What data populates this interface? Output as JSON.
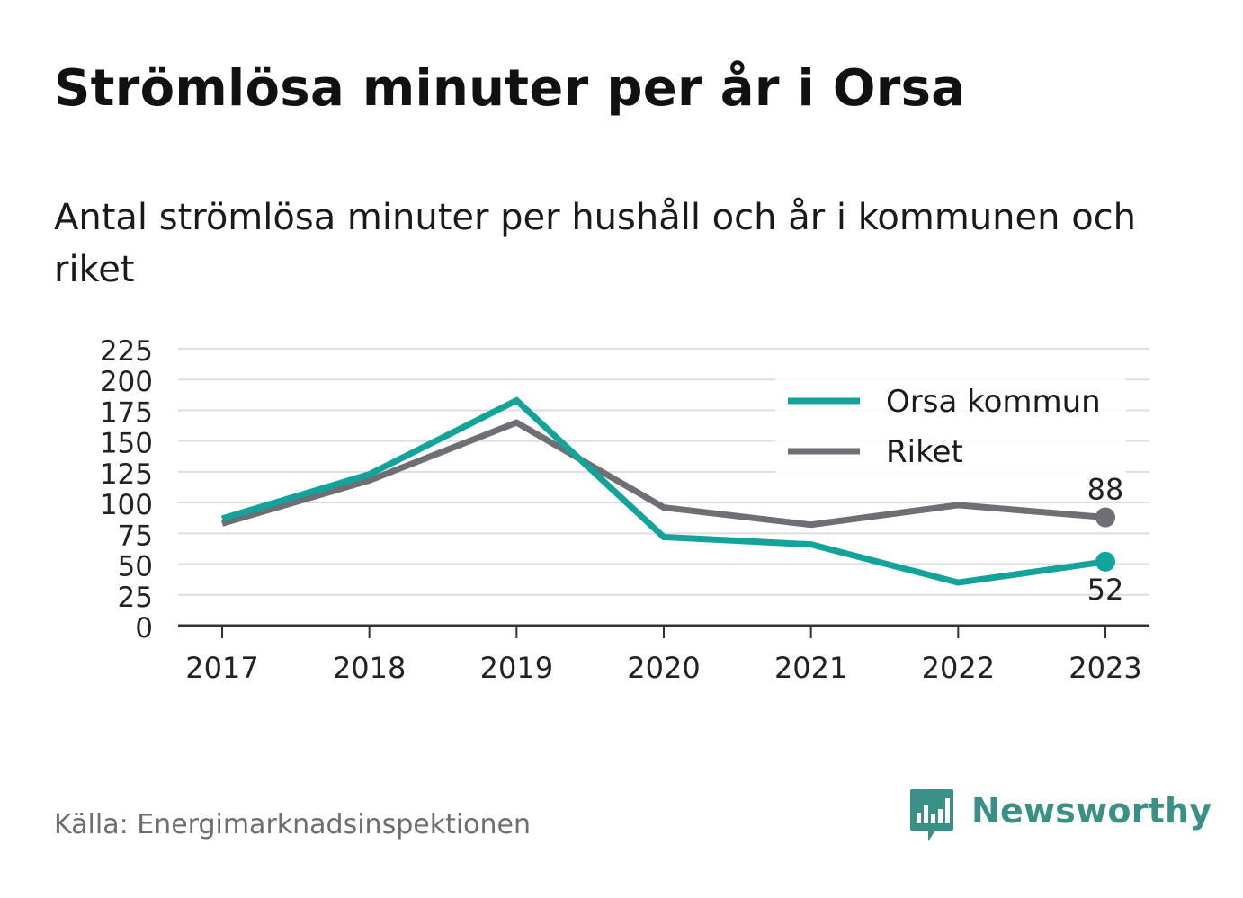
{
  "title": "Strömlösa minuter per år i Orsa",
  "subtitle": "Antal strömlösa minuter per hushåll och år i kommunen och riket",
  "source": "Källa: Energimarknadsinspektionen",
  "brand": {
    "name": "Newsworthy",
    "icon": "newsworthy-logo-icon",
    "color": "#3a8f86"
  },
  "chart_data": {
    "type": "line",
    "title": "Strömlösa minuter per år i Orsa",
    "xlabel": "",
    "ylabel": "",
    "x": [
      "2017",
      "2018",
      "2019",
      "2020",
      "2021",
      "2022",
      "2023"
    ],
    "ylim": [
      0,
      225
    ],
    "yticks": [
      "0",
      "25",
      "50",
      "75",
      "100",
      "125",
      "150",
      "175",
      "200",
      "225"
    ],
    "grid": true,
    "legend_position": "top-right",
    "series": [
      {
        "name": "Orsa kommun",
        "color": "#12a39a",
        "values": [
          87,
          123,
          183,
          72,
          66,
          35,
          52
        ],
        "end_label": "52"
      },
      {
        "name": "Riket",
        "color": "#6f6e74",
        "values": [
          83,
          118,
          165,
          96,
          82,
          98,
          88
        ],
        "end_label": "88"
      }
    ]
  }
}
